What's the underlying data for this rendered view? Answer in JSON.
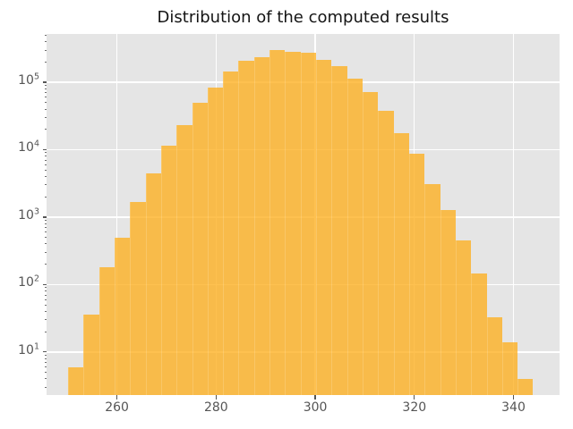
{
  "figure": {
    "background_color": "#ffffff",
    "axes_background_color": "#e5e5e5",
    "grid_color": "#ffffff",
    "tick_color": "#555555",
    "title_color": "#141414",
    "bar_color_rgba": "rgba(253,172,22,0.75)"
  },
  "chart_data": {
    "type": "bar",
    "subtype": "histogram",
    "title": "Distribution of the computed results",
    "xlabel": "",
    "ylabel": "",
    "yscale": "log",
    "grid": true,
    "legend": false,
    "xlim": [
      245.8,
      349.3
    ],
    "ylim": [
      2.3,
      520000
    ],
    "x_major_ticks": [
      260,
      280,
      300,
      320,
      340
    ],
    "y_major_tick_exponents": [
      1,
      2,
      3,
      4,
      5
    ],
    "bins": {
      "start": 250.13,
      "width": 3.128,
      "count": 30
    },
    "bin_edges_approx": [
      250.1,
      253.3,
      256.4,
      259.5,
      262.6,
      265.8,
      268.9,
      272.0,
      275.2,
      278.3,
      281.4,
      284.5,
      287.7,
      290.8,
      293.9,
      297.1,
      300.2,
      303.3,
      306.4,
      309.6,
      312.7,
      315.8,
      319.0,
      322.1,
      325.2,
      328.3,
      331.5,
      334.6,
      337.7,
      340.9,
      344.0
    ],
    "counts": [
      6,
      36,
      180,
      500,
      1660,
      4480,
      11300,
      23300,
      50100,
      83000,
      143000,
      209000,
      234000,
      297000,
      282000,
      277000,
      216000,
      175000,
      112000,
      71500,
      37600,
      17500,
      8600,
      3100,
      1280,
      450,
      146,
      33,
      14,
      4
    ]
  }
}
